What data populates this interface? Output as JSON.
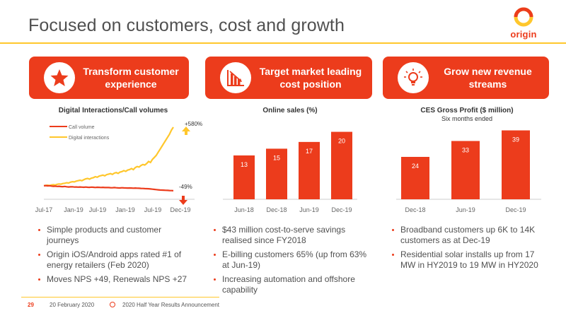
{
  "slide": {
    "title": "Focused on customers, cost and growth",
    "logo_text": "origin"
  },
  "colors": {
    "accent": "#EC3C1C",
    "gold": "#FFC72C",
    "orange_dark": "#E8482A",
    "text": "#505050"
  },
  "panels": [
    {
      "banner": "Transform customer experience",
      "icon": "star-icon",
      "chart_title": "Digital Interactions/Call volumes",
      "chart_subtitle": "",
      "bullets": [
        "Simple products and customer journeys",
        "Origin iOS/Android apps rated #1 of energy retailers (Feb 2020)",
        "Moves NPS +49, Renewals NPS +27"
      ]
    },
    {
      "banner": "Target market leading cost position",
      "icon": "cost-chart-icon",
      "chart_title": "Online sales (%)",
      "chart_subtitle": "",
      "bullets": [
        "$43 million cost-to-serve savings realised since FY2018",
        "E-billing customers 65% (up from 63% at Jun-19)",
        "Increasing automation and offshore capability"
      ]
    },
    {
      "banner": "Grow new revenue streams",
      "icon": "lightbulb-icon",
      "chart_title": "CES Gross Profit ($ million)",
      "chart_subtitle": "Six months ended",
      "bullets": [
        "Broadband customers up 6K to 14K customers as at Dec-19",
        "Residential solar installs up from 17 MW in HY2019 to 19 MW in HY2020"
      ]
    }
  ],
  "chart_data": [
    {
      "type": "line",
      "title": "Digital Interactions/Call volumes",
      "x_ticks": [
        "Jul-17",
        "Jan-19",
        "Jul-19",
        "Jan-19",
        "Jul-19",
        "Dec-19"
      ],
      "legend": [
        "Call volume",
        "Digital interactions"
      ],
      "series": [
        {
          "name": "Call volume",
          "color": "#EC3C1C",
          "values": [
            1.0,
            1.02,
            0.99,
            1.0,
            0.97,
            0.95,
            0.96,
            0.93,
            0.95,
            0.92,
            0.91,
            0.93,
            0.9,
            0.88,
            0.89,
            0.9,
            0.87,
            0.88,
            0.86,
            0.88,
            0.86,
            0.85,
            0.87,
            0.85,
            0.84,
            0.86,
            0.85,
            0.83,
            0.85,
            0.84,
            0.83,
            0.84,
            0.82,
            0.83,
            0.82,
            0.81,
            0.8,
            0.82,
            0.8,
            0.79,
            0.78,
            0.8,
            0.79,
            0.78,
            0.77,
            0.78,
            0.77,
            0.76,
            0.77,
            0.76,
            0.75,
            0.74,
            0.73,
            0.72,
            0.71,
            0.7,
            0.68,
            0.66,
            0.64,
            0.62,
            0.6,
            0.58,
            0.57,
            0.56,
            0.55,
            0.54,
            0.53,
            0.52,
            0.51
          ]
        },
        {
          "name": "Digital interactions",
          "color": "#FFC72C",
          "values": [
            1.0,
            1.03,
            1.05,
            1.02,
            1.08,
            1.1,
            1.07,
            1.14,
            1.18,
            1.16,
            1.22,
            1.25,
            1.3,
            1.27,
            1.35,
            1.4,
            1.38,
            1.46,
            1.5,
            1.55,
            1.5,
            1.6,
            1.68,
            1.72,
            1.65,
            1.76,
            1.8,
            1.9,
            1.84,
            1.95,
            2.0,
            2.05,
            1.98,
            2.1,
            2.15,
            2.2,
            2.12,
            2.25,
            2.3,
            2.22,
            2.35,
            2.4,
            2.5,
            2.42,
            2.55,
            2.6,
            2.7,
            2.6,
            2.8,
            2.9,
            2.85,
            3.0,
            3.1,
            3.05,
            3.2,
            3.4,
            3.3,
            3.6,
            3.8,
            4.0,
            4.3,
            4.6,
            4.9,
            5.2,
            5.5,
            5.8,
            6.1,
            6.5,
            6.8
          ]
        }
      ],
      "annotations": [
        "+580%",
        "-49%"
      ]
    },
    {
      "type": "bar",
      "title": "Online sales (%)",
      "categories": [
        "Jun-18",
        "Dec-18",
        "Jun-19",
        "Dec-19"
      ],
      "values": [
        13,
        15,
        17,
        20
      ],
      "ylim": [
        0,
        22
      ],
      "color": "#EC3C1C"
    },
    {
      "type": "bar",
      "title": "CES Gross Profit ($ million)",
      "subtitle": "Six months ended",
      "categories": [
        "Dec-18",
        "Jun-19",
        "Dec-19"
      ],
      "values": [
        24,
        33,
        39
      ],
      "ylim": [
        0,
        42
      ],
      "color": "#EC3C1C"
    }
  ],
  "footer": {
    "page": "29",
    "date": "20 February 2020",
    "event": "2020 Half Year Results Announcement"
  }
}
